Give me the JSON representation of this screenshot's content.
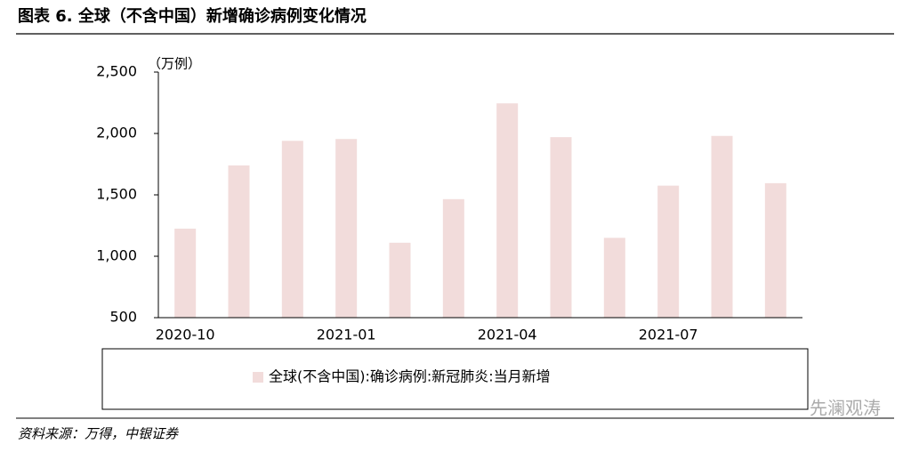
{
  "chart_data": {
    "type": "bar",
    "title": "图表 6. 全球（不含中国）新增确诊病例变化情况",
    "y_unit": "（万例）",
    "categories": [
      "2020-10",
      null,
      null,
      "2021-01",
      null,
      null,
      "2021-04",
      null,
      null,
      "2021-07",
      null,
      null
    ],
    "series": [
      {
        "name": "全球(不含中国):确诊病例:新冠肺炎:当月新增",
        "color": "#f2dcdb",
        "values": [
          1225,
          1740,
          1940,
          1955,
          1110,
          1465,
          2245,
          1970,
          1150,
          1575,
          1980,
          1595
        ]
      }
    ],
    "ylim": [
      500,
      2500
    ],
    "yticks": [
      500,
      {
        "value": 1000,
        "label": "1,000"
      },
      {
        "value": 1500,
        "label": "1,500"
      },
      {
        "value": 2000,
        "label": "2,000"
      },
      {
        "value": 2500,
        "label": "2,500"
      }
    ],
    "grid": false,
    "legend": "bottom"
  },
  "footer": {
    "source": "资料来源：万得，中银证券",
    "watermark": "先澜观涛"
  }
}
